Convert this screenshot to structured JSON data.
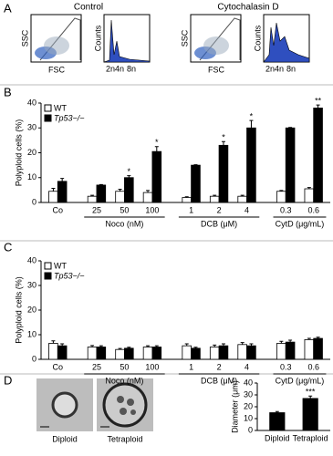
{
  "panel_labels": [
    "A",
    "B",
    "C",
    "D"
  ],
  "flow_panels": [
    {
      "title": "Control",
      "scatter_y_label": "SSC",
      "scatter_x_label": "FSC",
      "hist_y_label": "Counts",
      "hist_x_labels": [
        "2n4n",
        "8n"
      ]
    },
    {
      "title": "Cytochalasin D",
      "scatter_y_label": "SSC",
      "scatter_x_label": "FSC",
      "hist_y_label": "Counts",
      "hist_x_labels": [
        "2n4n",
        "8n"
      ]
    }
  ],
  "micrographs": [
    "Diploid",
    "Tetraploid"
  ],
  "chart_data": [
    {
      "type": "bar",
      "y_label": "Polyploid cells (%)",
      "categories": [
        "Co",
        "25",
        "50",
        "100",
        "1",
        "2",
        "4",
        "0.3",
        "0.6"
      ],
      "group_labels": [
        null,
        "Noco (nM)",
        "Noco (nM)",
        "Noco (nM)",
        "DCB (μM)",
        "DCB (μM)",
        "DCB (μM)",
        "CytD (μg/mL)",
        "CytD (μg/mL)"
      ],
      "series": [
        {
          "name": "WT",
          "color": "#ffffff",
          "values": [
            4.5,
            2.5,
            4.5,
            4,
            2,
            2.5,
            2.5,
            4.5,
            5.5
          ],
          "errors": [
            1.2,
            0.4,
            0.8,
            0.8,
            0.3,
            0.4,
            0.4,
            0.3,
            0.5
          ]
        },
        {
          "name": "Tp53−/−",
          "color": "#000000",
          "values": [
            8.5,
            7,
            10,
            20.5,
            15,
            23,
            30,
            30,
            38
          ],
          "errors": [
            1.2,
            0.2,
            0.8,
            2,
            0.2,
            1.5,
            3,
            0.2,
            1.2
          ]
        }
      ],
      "significance": [
        null,
        null,
        "*",
        "*",
        null,
        "*",
        "*",
        null,
        "**"
      ],
      "ylim": [
        0,
        40
      ],
      "yticks": [
        0,
        10,
        20,
        30,
        40
      ]
    },
    {
      "type": "bar",
      "y_label": "Polyploid cells (%)",
      "categories": [
        "Co",
        "25",
        "50",
        "100",
        "1",
        "2",
        "4",
        "0.3",
        "0.6"
      ],
      "group_labels": [
        null,
        "Noco (nM)",
        "Noco (nM)",
        "Noco (nM)",
        "DCB (μM)",
        "DCB (μM)",
        "DCB (μM)",
        "CytD (μg/mL)",
        "CytD (μg/mL)"
      ],
      "series": [
        {
          "name": "WT",
          "color": "#ffffff",
          "values": [
            6.5,
            5,
            4,
            5,
            5.5,
            5,
            6,
            6.5,
            8
          ],
          "errors": [
            1,
            0.6,
            0.4,
            0.5,
            0.8,
            0.8,
            0.8,
            0.8,
            0.5
          ]
        },
        {
          "name": "Tp53−/−",
          "color": "#000000",
          "values": [
            5.5,
            5,
            4.5,
            5,
            4.5,
            5.5,
            5.5,
            7,
            8.5
          ],
          "errors": [
            0.8,
            0.5,
            0.4,
            0.5,
            0.4,
            0.8,
            0.8,
            0.8,
            0.5
          ]
        }
      ],
      "significance": [
        null,
        null,
        null,
        null,
        null,
        null,
        null,
        null,
        null
      ],
      "ylim": [
        0,
        40
      ],
      "yticks": [
        0,
        10,
        20,
        30,
        40
      ]
    },
    {
      "type": "bar",
      "y_label": "Diameter (μm)",
      "categories": [
        "Diploid",
        "Tetraploid"
      ],
      "values": [
        15,
        27
      ],
      "errors": [
        1,
        2
      ],
      "color": "#000000",
      "significance": [
        null,
        "***"
      ],
      "ylim": [
        0,
        40
      ],
      "yticks": [
        0,
        10,
        20,
        30,
        40
      ]
    }
  ]
}
